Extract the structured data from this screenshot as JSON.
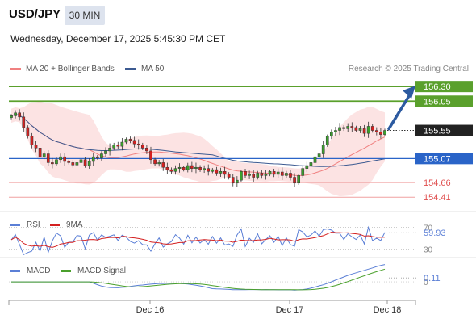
{
  "header": {
    "symbol": "USD/JPY",
    "timeframe": "30 MIN",
    "datetime": "Wednesday, December 17, 2025 5:45:30 PM CET"
  },
  "legend": {
    "ma20": {
      "label": "MA 20 + Bollinger Bands",
      "color": "#f08080"
    },
    "ma50": {
      "label": "MA 50",
      "color": "#3c5a91"
    }
  },
  "credit": "Research © 2025 Trading Central",
  "chart_data": [
    {
      "type": "candlestick",
      "title": "USD/JPY",
      "ylim": [
        154.33,
        156.44
      ],
      "x_ticks": [
        "Dec 16",
        "Dec 17",
        "Dec 18"
      ],
      "last_price": 155.55,
      "levels": [
        {
          "value": 156.3,
          "label": "156.30",
          "kind": "resistance",
          "color": "#5aa02c"
        },
        {
          "value": 156.05,
          "label": "156.05",
          "kind": "resistance",
          "color": "#5aa02c"
        },
        {
          "value": 155.55,
          "label": "155.55",
          "kind": "last",
          "color": "#222222"
        },
        {
          "value": 155.07,
          "label": "155.07",
          "kind": "pivot",
          "color": "#2a64c8"
        },
        {
          "value": 154.66,
          "label": "154.66",
          "kind": "support",
          "color": "#e05050"
        },
        {
          "value": 154.41,
          "label": "154.41",
          "kind": "support",
          "color": "#e05050"
        }
      ],
      "arrow": {
        "from": 155.55,
        "to": 156.3,
        "color": "#2c5aa0"
      },
      "closes": [
        155.8,
        155.85,
        155.78,
        155.6,
        155.45,
        155.3,
        155.25,
        155.1,
        155.15,
        155.0,
        154.98,
        155.05,
        155.1,
        155.02,
        155.0,
        154.96,
        155.0,
        155.05,
        154.95,
        155.02,
        155.1,
        155.08,
        155.15,
        155.2,
        155.25,
        155.3,
        155.28,
        155.35,
        155.4,
        155.38,
        155.32,
        155.3,
        155.25,
        155.2,
        155.05,
        154.98,
        155.0,
        154.92,
        154.88,
        154.85,
        154.9,
        154.92,
        154.88,
        154.95,
        154.9,
        154.92,
        154.88,
        154.9,
        154.85,
        154.88,
        154.82,
        154.85,
        154.8,
        154.75,
        154.65,
        154.7,
        154.85,
        154.78,
        154.8,
        154.75,
        154.82,
        154.78,
        154.8,
        154.85,
        154.8,
        154.84,
        154.78,
        154.82,
        154.75,
        154.65,
        154.78,
        154.9,
        154.95,
        155.0,
        155.1,
        155.15,
        155.3,
        155.45,
        155.52,
        155.55,
        155.6,
        155.58,
        155.62,
        155.6,
        155.55,
        155.58,
        155.5,
        155.62,
        155.55,
        155.52,
        155.48,
        155.55
      ]
    },
    {
      "type": "line",
      "title": "RSI",
      "series": [
        {
          "name": "RSI",
          "color": "#5b7fd6"
        },
        {
          "name": "9MA",
          "color": "#d42020"
        }
      ],
      "ylim": [
        25,
        75
      ],
      "ref_levels": [
        {
          "value": 70,
          "label": "70"
        },
        {
          "value": 30,
          "label": "30"
        }
      ],
      "current_value": "59.93"
    },
    {
      "type": "line",
      "title": "MACD",
      "series": [
        {
          "name": "MACD",
          "color": "#5b7fd6"
        },
        {
          "name": "MACD Signal",
          "color": "#4aa02c"
        }
      ],
      "ylim": [
        -0.45,
        0.25
      ],
      "ref_levels": [
        {
          "value": 0,
          "label": "0"
        }
      ],
      "current_value": "0.11"
    }
  ]
}
